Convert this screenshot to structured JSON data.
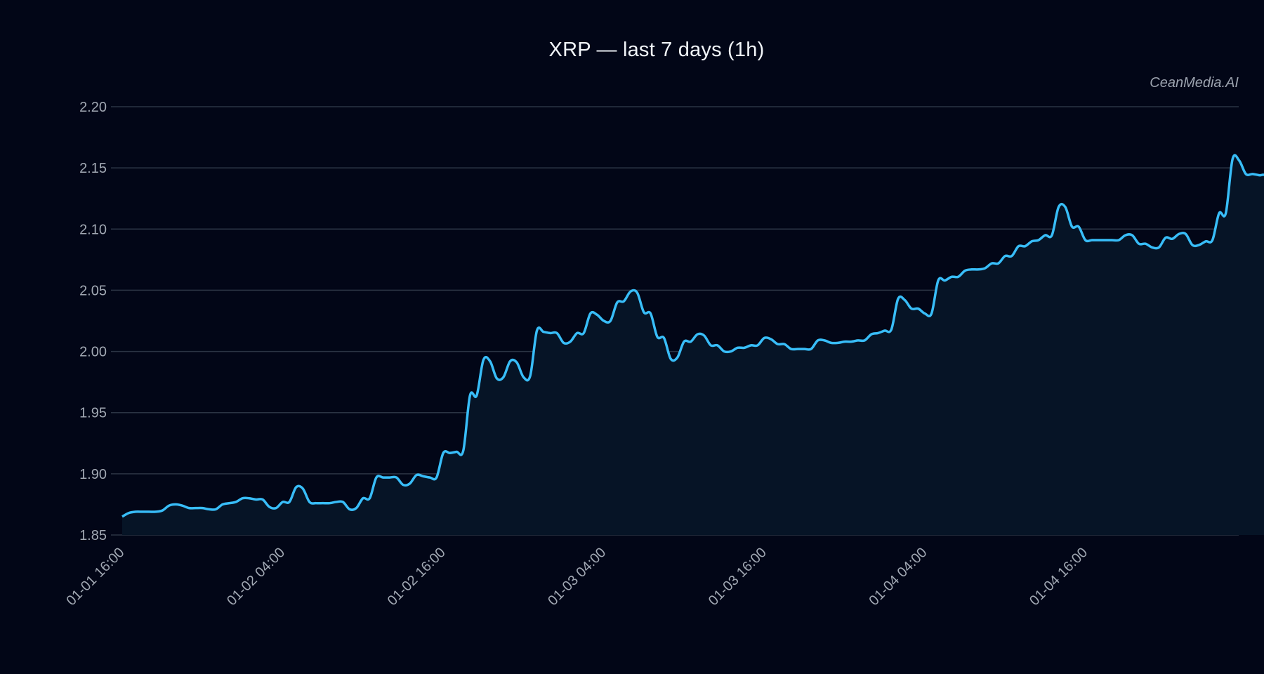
{
  "title": "XRP — last 7 days (1h)",
  "watermark": "CeanMedia.AI",
  "colors": {
    "background": "#020617",
    "line": "#38bdf8",
    "area": "#061426",
    "grid": "#2b3444",
    "tick_text": "#a1a8b3",
    "title_text": "#f1f5f9"
  },
  "chart_data": {
    "type": "area",
    "title": "XRP — last 7 days (1h)",
    "xlabel": "",
    "ylabel": "",
    "ylim": [
      1.85,
      2.2
    ],
    "yticks": [
      "1.85",
      "1.90",
      "1.95",
      "2.00",
      "2.05",
      "2.10",
      "2.15",
      "2.20"
    ],
    "ytick_values": [
      1.85,
      1.9,
      1.95,
      2.0,
      2.05,
      2.1,
      2.15,
      2.2
    ],
    "xtick_labels": [
      "01-01 16:00",
      "01-02 04:00",
      "01-02 16:00",
      "01-03 04:00",
      "01-03 16:00",
      "01-04 04:00",
      "01-04 16:00"
    ],
    "xtick_indices": [
      0,
      24,
      48,
      72,
      96,
      120,
      144
    ],
    "grid": true,
    "legend": null,
    "series": [
      {
        "name": "XRP",
        "values": [
          1.865,
          1.868,
          1.869,
          1.869,
          1.869,
          1.869,
          1.87,
          1.874,
          1.875,
          1.874,
          1.872,
          1.872,
          1.872,
          1.871,
          1.871,
          1.875,
          1.876,
          1.877,
          1.88,
          1.88,
          1.879,
          1.879,
          1.873,
          1.872,
          1.877,
          1.877,
          1.889,
          1.888,
          1.877,
          1.876,
          1.876,
          1.876,
          1.877,
          1.877,
          1.871,
          1.872,
          1.88,
          1.88,
          1.897,
          1.897,
          1.897,
          1.897,
          1.891,
          1.892,
          1.899,
          1.898,
          1.897,
          1.897,
          1.917,
          1.917,
          1.918,
          1.919,
          1.964,
          1.964,
          1.993,
          1.992,
          1.978,
          1.979,
          1.992,
          1.991,
          1.979,
          1.98,
          2.017,
          2.016,
          2.015,
          2.015,
          2.007,
          2.008,
          2.015,
          2.015,
          2.031,
          2.03,
          2.025,
          2.025,
          2.04,
          2.041,
          2.049,
          2.048,
          2.032,
          2.031,
          2.012,
          2.011,
          1.994,
          1.995,
          2.008,
          2.008,
          2.014,
          2.013,
          2.005,
          2.005,
          2.0,
          2.0,
          2.003,
          2.003,
          2.005,
          2.005,
          2.011,
          2.01,
          2.006,
          2.006,
          2.002,
          2.002,
          2.002,
          2.002,
          2.009,
          2.009,
          2.007,
          2.007,
          2.008,
          2.008,
          2.009,
          2.009,
          2.014,
          2.015,
          2.017,
          2.018,
          2.043,
          2.042,
          2.035,
          2.035,
          2.031,
          2.031,
          2.058,
          2.058,
          2.061,
          2.061,
          2.066,
          2.067,
          2.067,
          2.068,
          2.072,
          2.072,
          2.078,
          2.078,
          2.086,
          2.086,
          2.09,
          2.091,
          2.095,
          2.095,
          2.118,
          2.118,
          2.102,
          2.102,
          2.091,
          2.091,
          2.091,
          2.091,
          2.091,
          2.091,
          2.095,
          2.095,
          2.088,
          2.088,
          2.085,
          2.085,
          2.093,
          2.092,
          2.096,
          2.096,
          2.087,
          2.087,
          2.09,
          2.091,
          2.113,
          2.113,
          2.157,
          2.156,
          2.145,
          2.145,
          2.144,
          2.143,
          2.128
        ]
      }
    ]
  }
}
